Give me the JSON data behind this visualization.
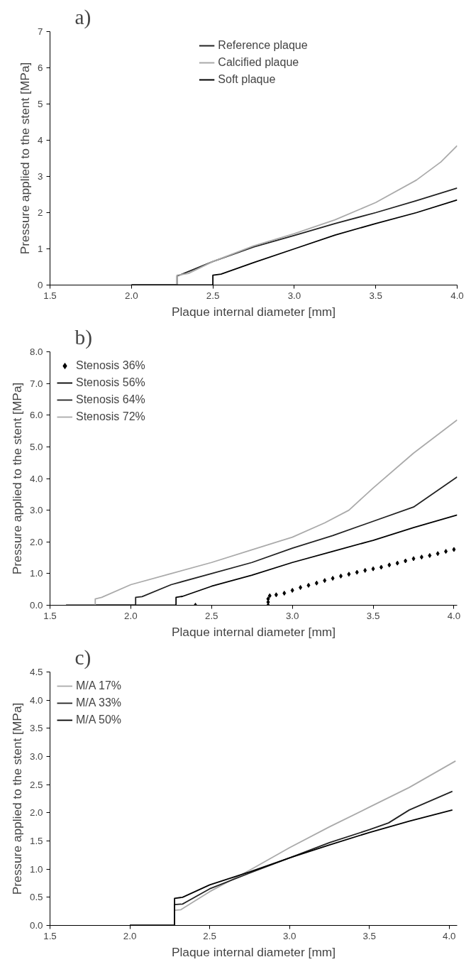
{
  "chart_data": [
    {
      "type": "line",
      "title": "a)",
      "xlabel": "Plaque internal diameter [mm]",
      "ylabel": "Pressure applied to the stent [MPa]",
      "xlim": [
        1.5,
        4.0
      ],
      "ylim": [
        0,
        7
      ],
      "xticks": [
        1.5,
        {
          "value": 2,
          "label": "2.0"
        },
        2.5,
        {
          "value": 3,
          "label": "3.0"
        },
        3.5,
        {
          "value": 4,
          "label": "4.0"
        }
      ],
      "yticks": [
        0,
        1,
        2,
        3,
        4,
        5,
        6,
        7
      ],
      "grid": false,
      "legend": "top",
      "marker": "none",
      "line_style": "solid",
      "series": [
        {
          "name": "Reference plaque",
          "color": "#222222",
          "x": [
            2.0,
            2.28,
            2.28,
            2.3,
            2.5,
            2.75,
            3.0,
            3.25,
            3.5,
            3.75,
            4.0
          ],
          "values": [
            0,
            0,
            0.25,
            0.28,
            0.65,
            1.05,
            1.37,
            1.7,
            2.0,
            2.33,
            2.68
          ]
        },
        {
          "name": "Calcified plaque",
          "color": "#aaaaaa",
          "x": [
            2.0,
            2.28,
            2.28,
            2.35,
            2.5,
            2.75,
            3.0,
            3.25,
            3.5,
            3.75,
            3.9,
            4.0
          ],
          "values": [
            0,
            0,
            0.27,
            0.32,
            0.65,
            1.08,
            1.42,
            1.8,
            2.28,
            2.9,
            3.4,
            3.85
          ]
        },
        {
          "name": "Soft plaque",
          "color": "#000000",
          "x": [
            2.0,
            2.5,
            2.5,
            2.55,
            2.75,
            3.0,
            3.25,
            3.5,
            3.75,
            4.0
          ],
          "values": [
            0,
            0,
            0.27,
            0.3,
            0.62,
            1.0,
            1.38,
            1.7,
            2.0,
            2.35
          ]
        }
      ]
    },
    {
      "type": "line",
      "title": "b)",
      "xlabel": "Plaque internal diameter [mm]",
      "ylabel": "Pressure applied to the stent [MPa]",
      "xlim": [
        1.5,
        4.02
      ],
      "ylim": [
        0,
        8
      ],
      "xticks": [
        1.5,
        {
          "value": 2,
          "label": "2.0"
        },
        2.5,
        {
          "value": 3,
          "label": "3.0"
        },
        3.5,
        {
          "value": 4,
          "label": "4.0"
        }
      ],
      "yticks": [
        {
          "value": 0,
          "label": "0.0"
        },
        {
          "value": 1,
          "label": "1.0"
        },
        {
          "value": 2,
          "label": "2.0"
        },
        {
          "value": 3,
          "label": "3.0"
        },
        {
          "value": 4,
          "label": "4.0"
        },
        {
          "value": 5,
          "label": "5.0"
        },
        {
          "value": 6,
          "label": "6.0"
        },
        {
          "value": 7,
          "label": "7.0"
        },
        {
          "value": 8,
          "label": "8.0"
        }
      ],
      "grid": false,
      "legend": "top left",
      "line_style": "solid",
      "series": [
        {
          "name": "Stenosis 36%",
          "type": "scatter",
          "marker": "diamond",
          "color": "#000000",
          "x": [
            2.4,
            2.85,
            2.85,
            2.85,
            2.86,
            2.9,
            2.95,
            3.0,
            3.05,
            3.1,
            3.15,
            3.2,
            3.25,
            3.3,
            3.35,
            3.4,
            3.45,
            3.5,
            3.55,
            3.6,
            3.65,
            3.7,
            3.75,
            3.8,
            3.85,
            3.9,
            3.95,
            4.0
          ],
          "values": [
            0,
            0,
            0.1,
            0.2,
            0.3,
            0.33,
            0.38,
            0.47,
            0.56,
            0.63,
            0.7,
            0.78,
            0.85,
            0.92,
            0.98,
            1.04,
            1.1,
            1.15,
            1.2,
            1.27,
            1.33,
            1.4,
            1.47,
            1.52,
            1.57,
            1.63,
            1.7,
            1.76
          ]
        },
        {
          "name": "Stenosis 56%",
          "color": "#000000",
          "x": [
            1.6,
            2.28,
            2.28,
            2.32,
            2.5,
            2.75,
            3.0,
            3.25,
            3.5,
            3.75,
            4.02
          ],
          "values": [
            0,
            0,
            0.25,
            0.28,
            0.6,
            0.95,
            1.35,
            1.7,
            2.05,
            2.45,
            2.85
          ]
        },
        {
          "name": "Stenosis 64%",
          "color": "#222222",
          "x": [
            1.6,
            2.03,
            2.03,
            2.07,
            2.25,
            2.5,
            2.75,
            3.0,
            3.25,
            3.5,
            3.75,
            4.02
          ],
          "values": [
            0,
            0,
            0.25,
            0.27,
            0.65,
            1.0,
            1.35,
            1.8,
            2.2,
            2.65,
            3.1,
            4.05
          ]
        },
        {
          "name": "Stenosis 72%",
          "color": "#aaaaaa",
          "x": [
            1.6,
            1.78,
            1.78,
            1.82,
            2.0,
            2.25,
            2.5,
            2.75,
            3.0,
            3.2,
            3.35,
            3.5,
            3.75,
            4.02
          ],
          "values": [
            0,
            0,
            0.2,
            0.25,
            0.65,
            1.0,
            1.35,
            1.75,
            2.15,
            2.6,
            3.0,
            3.7,
            4.8,
            5.85
          ]
        }
      ]
    },
    {
      "type": "line",
      "title": "c)",
      "xlabel": "Plaque internal diameter [mm]",
      "ylabel": "Pressure applied to the stent [MPa]",
      "xlim": [
        1.5,
        4.05
      ],
      "ylim": [
        0,
        4.5
      ],
      "xticks": [
        1.5,
        {
          "value": 2,
          "label": "2.0"
        },
        2.5,
        {
          "value": 3,
          "label": "3.0"
        },
        3.5,
        {
          "value": 4,
          "label": "4.0"
        }
      ],
      "yticks": [
        {
          "value": 0,
          "label": "0.0"
        },
        0.5,
        {
          "value": 1,
          "label": "1.0"
        },
        1.5,
        {
          "value": 2,
          "label": "2.0"
        },
        2.5,
        {
          "value": 3,
          "label": "3.0"
        },
        3.5,
        {
          "value": 4,
          "label": "4.0"
        },
        4.5
      ],
      "grid": false,
      "legend": "top left",
      "marker": "none",
      "line_style": "solid",
      "series": [
        {
          "name": "M/A 17%",
          "color": "#aaaaaa",
          "x": [
            2.0,
            2.28,
            2.28,
            2.32,
            2.5,
            2.75,
            3.0,
            3.25,
            3.5,
            3.75,
            4.04
          ],
          "values": [
            0,
            0,
            0.27,
            0.28,
            0.6,
            0.98,
            1.38,
            1.75,
            2.1,
            2.45,
            2.92
          ]
        },
        {
          "name": "M/A 33%",
          "color": "#222222",
          "x": [
            2.0,
            2.28,
            2.28,
            2.33,
            2.5,
            2.75,
            3.0,
            3.25,
            3.5,
            3.62,
            3.75,
            4.02
          ],
          "values": [
            0,
            0,
            0.37,
            0.38,
            0.65,
            0.93,
            1.2,
            1.47,
            1.7,
            1.82,
            2.05,
            2.38
          ]
        },
        {
          "name": "M/A 50%",
          "color": "#000000",
          "x": [
            2.0,
            2.28,
            2.28,
            2.33,
            2.5,
            2.75,
            3.0,
            3.25,
            3.5,
            3.75,
            4.02
          ],
          "values": [
            0,
            0,
            0.48,
            0.5,
            0.72,
            0.95,
            1.2,
            1.43,
            1.65,
            1.85,
            2.05
          ]
        }
      ]
    }
  ]
}
